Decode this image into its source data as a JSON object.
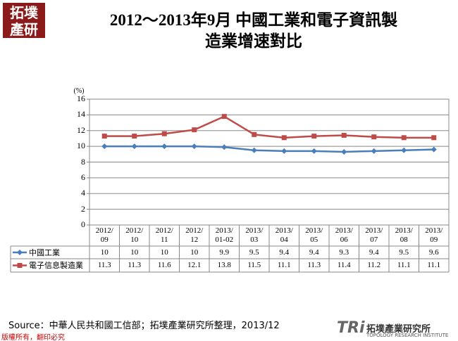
{
  "logo": "拓墣\n產研",
  "chart_data": {
    "type": "line",
    "title": "2012～2013年9月 中國工業和電子資訊製\n造業增速對比",
    "y_unit": "(%)",
    "categories": [
      "2012/\n09",
      "2012/\n10",
      "2012/\n11",
      "2012/\n12",
      "2013/\n01-02",
      "2013/\n03",
      "2013/\n04",
      "2013/\n05",
      "2013/\n06",
      "2013/\n07",
      "2013/\n08",
      "2013/\n09"
    ],
    "series": [
      {
        "name": "中國工業",
        "color": "#4a7ebb",
        "marker": "diamond",
        "values": [
          10,
          10,
          10,
          10,
          9.9,
          9.5,
          9.4,
          9.4,
          9.3,
          9.4,
          9.5,
          9.6
        ]
      },
      {
        "name": "電子信息製造業",
        "color": "#be4b48",
        "marker": "square",
        "values": [
          11.3,
          11.3,
          11.6,
          12.1,
          13.8,
          11.5,
          11.1,
          11.3,
          11.4,
          11.2,
          11.1,
          11.1
        ]
      }
    ],
    "ylim": [
      0,
      16
    ],
    "yticks": [
      0,
      2,
      4,
      6,
      8,
      10,
      12,
      14,
      16
    ],
    "grid": true
  },
  "footer": {
    "source": "Source：中華人民共和國工信部；拓墣產業研究所整理，2013/12",
    "copyright": "版權所有，翻印必究",
    "brand_mark": "TRi",
    "brand": "拓墣產業研究所",
    "brand_sub": "TOPOLOGY RESEARCH INSTITUTE"
  }
}
